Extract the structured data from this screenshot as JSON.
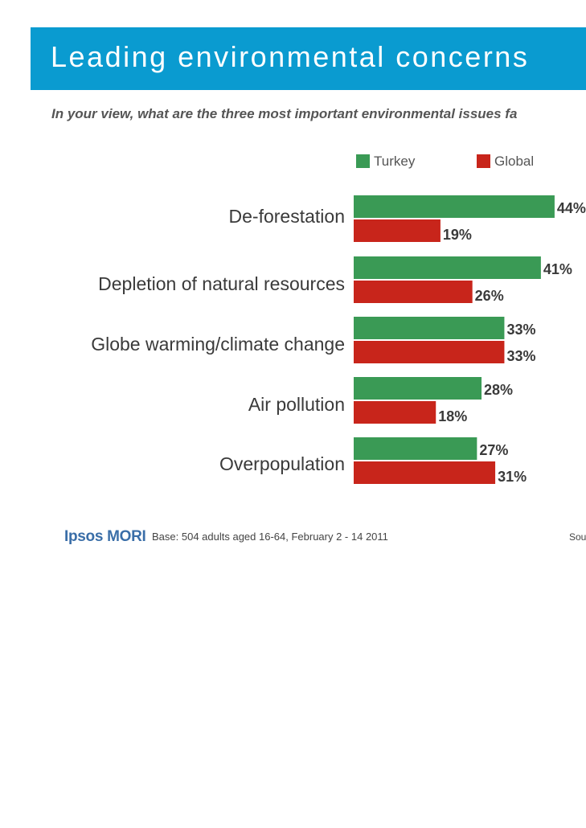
{
  "title": "Leading environmental concerns",
  "subtitle": "In your view, what are the three most important environmental issues fa",
  "footer": {
    "logo": "Ipsos MORI",
    "base": "Base: 504 adults aged 16-64, February 2 - 14 2011",
    "source": "Sou"
  },
  "colors": {
    "header": "#0a9bd0",
    "turkey": "#3a9a55",
    "global": "#c8251b"
  },
  "chart_data": {
    "type": "bar",
    "orientation": "horizontal",
    "categories": [
      "De-forestation",
      "Depletion of natural resources",
      "Globe warming/climate change",
      "Air pollution",
      "Overpopulation"
    ],
    "series": [
      {
        "name": "Turkey",
        "values": [
          44,
          41,
          33,
          28,
          27
        ],
        "labels": [
          "44%",
          "41%",
          "33%",
          "28%",
          "27%"
        ]
      },
      {
        "name": "Global",
        "values": [
          19,
          26,
          33,
          18,
          31
        ],
        "labels": [
          "19%",
          "26%",
          "33%",
          "18%",
          "31%"
        ]
      }
    ],
    "value_unit": "%",
    "legend": {
      "position": "top",
      "entries": [
        "Turkey",
        "Global"
      ]
    },
    "grid": false
  }
}
